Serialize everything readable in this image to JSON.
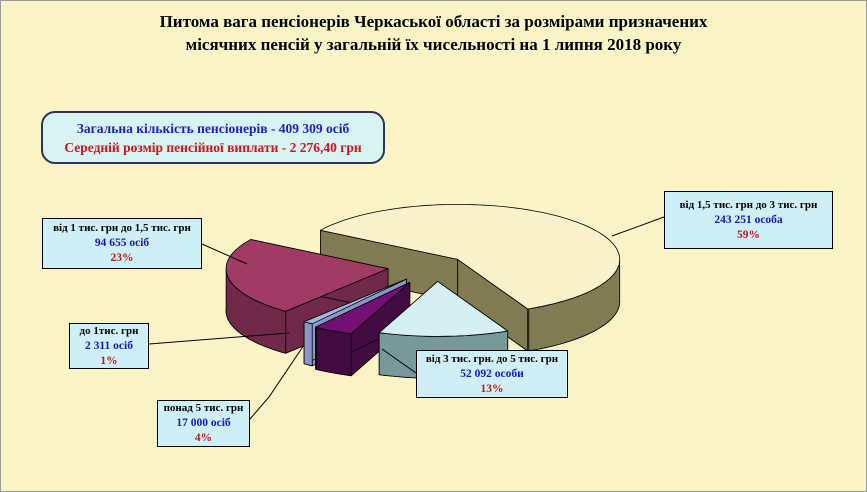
{
  "title": {
    "line1": "Питома вага пенсіонерів Черкаської області за розмірами призначених",
    "line2": "місячних пенсій у загальній їх чисельності на 1 липня 2018 року"
  },
  "summary_box": {
    "line1": "Загальна кількість пенсіонерів - 409 309 осіб",
    "line2": "Середній розмір пенсійної виплати - 2 276,40 грн"
  },
  "chart_data": {
    "type": "pie",
    "style": "3d-exploded",
    "title": "Питома вага пенсіонерів Черкаської області за розмірами призначених місячних пенсій у загальній їх чисельності на 1 липня 2018 року",
    "total_label": "409 309 осіб",
    "average_payment_label": "2 276,40 грн",
    "legend_position": "callout-labels",
    "slices": [
      {
        "label": "від 1,5 тис. грн до 3 тис. грн",
        "value": 243251,
        "count_label": "243 251 особа",
        "pct": 59,
        "pct_label": "59%",
        "color_top": "#F8F1CA",
        "color_side": "#817B52"
      },
      {
        "label": "від 3 тис. грн. до 5 тис. грн",
        "value": 52092,
        "count_label": "52 092 особи",
        "pct": 13,
        "pct_label": "13%",
        "color_top": "#D5EFF3",
        "color_side": "#769A99"
      },
      {
        "label": "понад 5 тис. грн",
        "value": 17000,
        "count_label": "17 000 осіб",
        "pct": 4,
        "pct_label": "4%",
        "color_top": "#740F74",
        "color_side": "#420B42"
      },
      {
        "label": "до 1тис. грн",
        "value": 2311,
        "count_label": "2 311 осіб",
        "pct": 1,
        "pct_label": "1%",
        "color_top": "#A9B4DB",
        "color_side": "#8A96C6"
      },
      {
        "label": "від 1 тис. грн до 1,5 тис. грн",
        "value": 94655,
        "count_label": "94 655 осіб",
        "pct": 23,
        "pct_label": "23%",
        "color_top": "#A03B63",
        "color_side": "#702949"
      }
    ]
  }
}
